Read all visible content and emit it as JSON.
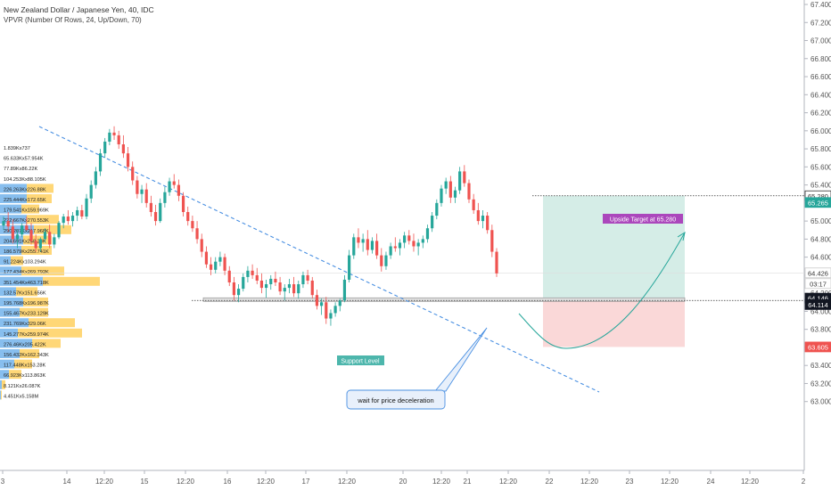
{
  "header": {
    "title": "New Zealand Dollar / Japanese Yen, 40, IDC",
    "indicator": "VPVR (Number Of Rows, 24, Up/Down, 70)"
  },
  "chart_data": {
    "type": "candlestick",
    "y_ticks": [
      "63.000",
      "63.200",
      "63.400",
      "63.600",
      "63.800",
      "64.000",
      "64.200",
      "64.400",
      "64.600",
      "64.800",
      "65.000",
      "65.200",
      "65.400",
      "65.600",
      "65.800",
      "66.000",
      "66.200",
      "66.400",
      "66.600",
      "66.800",
      "67.000",
      "67.200",
      "67.400"
    ],
    "x_ticks": [
      "3",
      "14",
      "12:20",
      "15",
      "12:20",
      "16",
      "12:20",
      "17",
      "12:20",
      "20",
      "12:20",
      "21",
      "12:20",
      "22",
      "12:20",
      "23",
      "12:20",
      "24",
      "12:20",
      "2"
    ],
    "price_badges": [
      {
        "value": "65.280",
        "bg": "#ffffff",
        "fg": "#333333",
        "border": "#333333"
      },
      {
        "value": "65.265",
        "bg": "#26a69a",
        "fg": "#ffffff"
      },
      {
        "value": "64.426",
        "bg": "#ffffff",
        "fg": "#333333",
        "border": "#cccccc"
      },
      {
        "value": "03:17",
        "bg": "#ffffff",
        "fg": "#333333",
        "border": "#cccccc"
      },
      {
        "value": "64.146",
        "bg": "#131722",
        "fg": "#ffffff"
      },
      {
        "value": "64.114",
        "bg": "#131722",
        "fg": "#ffffff"
      },
      {
        "value": "63.605",
        "bg": "#ef5350",
        "fg": "#ffffff"
      }
    ],
    "vp_labels": [
      "1.839Kx737",
      "65.633Kx57.954K",
      "77.89Kx86.22K",
      "104.253Kx88.105K",
      "226.263Kx226.88K",
      "225.444Kx172.65K",
      "179.541Kx159.969K",
      "222.667Kx270.553K",
      "290.207Kx217.968K",
      "204.691Kx248.23K",
      "186.579Kx255.741K",
      "91.224Kx103.294K",
      "177.434Kx269.792K",
      "351.454Kx463.718K",
      "132.57Kx151.656K",
      "195.768Kx196.987K",
      "155.467Kx233.129K",
      "231.769Kx329.06K",
      "145.277Kx259.974K",
      "276.46Kx205.422K",
      "156.432Kx162.343K",
      "117.448Kx153.28K",
      "66.923Kx113.863K",
      "8.121Kx26.087K",
      "4.451Kx5.158M"
    ],
    "vp_rows": [
      {
        "up": 0,
        "down": 0
      },
      {
        "up": 0,
        "down": 0
      },
      {
        "up": 0,
        "down": 0
      },
      {
        "up": 0,
        "down": 0
      },
      {
        "up": 30,
        "down": 30
      },
      {
        "up": 30,
        "down": 28
      },
      {
        "up": 24,
        "down": 20
      },
      {
        "up": 30,
        "down": 36
      },
      {
        "up": 38,
        "down": 42
      },
      {
        "up": 26,
        "down": 32
      },
      {
        "up": 24,
        "down": 34
      },
      {
        "up": 12,
        "down": 14
      },
      {
        "up": 24,
        "down": 48
      },
      {
        "up": 48,
        "down": 64
      },
      {
        "up": 18,
        "down": 24
      },
      {
        "up": 26,
        "down": 28
      },
      {
        "up": 22,
        "down": 32
      },
      {
        "up": 32,
        "down": 52
      },
      {
        "up": 20,
        "down": 72
      },
      {
        "up": 36,
        "down": 32
      },
      {
        "up": 22,
        "down": 22
      },
      {
        "up": 16,
        "down": 20
      },
      {
        "up": 10,
        "down": 14
      },
      {
        "up": 2,
        "down": 4
      },
      {
        "up": 1,
        "down": 1
      }
    ],
    "ohlc": [
      [
        64.95,
        65.05,
        64.9,
        65.0
      ],
      [
        65.0,
        65.1,
        64.88,
        64.94
      ],
      [
        64.94,
        65.02,
        64.75,
        64.8
      ],
      [
        64.8,
        64.9,
        64.7,
        64.85
      ],
      [
        64.85,
        64.98,
        64.82,
        64.95
      ],
      [
        64.95,
        65.05,
        64.9,
        64.9
      ],
      [
        64.9,
        64.98,
        64.74,
        64.78
      ],
      [
        64.78,
        64.85,
        64.66,
        64.7
      ],
      [
        64.7,
        64.82,
        64.66,
        64.8
      ],
      [
        64.8,
        64.92,
        64.76,
        64.88
      ],
      [
        64.88,
        64.96,
        64.7,
        64.74
      ],
      [
        64.74,
        64.86,
        64.7,
        64.82
      ],
      [
        64.82,
        65.0,
        64.8,
        64.98
      ],
      [
        64.98,
        65.08,
        64.92,
        65.05
      ],
      [
        65.05,
        65.12,
        64.96,
        65.0
      ],
      [
        65.0,
        65.1,
        64.94,
        65.06
      ],
      [
        65.06,
        65.16,
        65.0,
        65.12
      ],
      [
        65.12,
        65.18,
        65.02,
        65.05
      ],
      [
        65.05,
        65.3,
        65.02,
        65.25
      ],
      [
        65.25,
        65.45,
        65.2,
        65.4
      ],
      [
        65.4,
        65.6,
        65.36,
        65.55
      ],
      [
        65.55,
        65.8,
        65.5,
        65.75
      ],
      [
        65.75,
        65.92,
        65.7,
        65.88
      ],
      [
        65.88,
        66.02,
        65.84,
        65.98
      ],
      [
        65.98,
        66.05,
        65.9,
        65.95
      ],
      [
        65.95,
        66.0,
        65.8,
        65.85
      ],
      [
        65.85,
        65.95,
        65.7,
        65.75
      ],
      [
        65.75,
        65.82,
        65.55,
        65.6
      ],
      [
        65.6,
        65.66,
        65.4,
        65.45
      ],
      [
        65.45,
        65.5,
        65.25,
        65.3
      ],
      [
        65.3,
        65.4,
        65.2,
        65.35
      ],
      [
        65.35,
        65.42,
        65.15,
        65.2
      ],
      [
        65.2,
        65.28,
        65.05,
        65.1
      ],
      [
        65.1,
        65.18,
        64.95,
        65.0
      ],
      [
        65.0,
        65.25,
        64.98,
        65.2
      ],
      [
        65.2,
        65.38,
        65.15,
        65.32
      ],
      [
        65.32,
        65.48,
        65.28,
        65.44
      ],
      [
        65.44,
        65.52,
        65.36,
        65.4
      ],
      [
        65.4,
        65.46,
        65.22,
        65.28
      ],
      [
        65.28,
        65.32,
        65.05,
        65.1
      ],
      [
        65.1,
        65.16,
        64.95,
        65.0
      ],
      [
        65.0,
        65.06,
        64.88,
        64.92
      ],
      [
        64.92,
        65.0,
        64.75,
        64.8
      ],
      [
        64.8,
        64.86,
        64.6,
        64.66
      ],
      [
        64.66,
        64.72,
        64.48,
        64.52
      ],
      [
        64.52,
        64.6,
        64.4,
        64.46
      ],
      [
        64.46,
        64.6,
        64.42,
        64.55
      ],
      [
        64.55,
        64.66,
        64.5,
        64.6
      ],
      [
        64.6,
        64.64,
        64.4,
        64.45
      ],
      [
        64.45,
        64.5,
        64.28,
        64.32
      ],
      [
        64.32,
        64.38,
        64.12,
        64.18
      ],
      [
        64.18,
        64.3,
        64.1,
        64.25
      ],
      [
        64.25,
        64.42,
        64.22,
        64.38
      ],
      [
        64.38,
        64.5,
        64.32,
        64.45
      ],
      [
        64.45,
        64.52,
        64.36,
        64.4
      ],
      [
        64.4,
        64.48,
        64.3,
        64.34
      ],
      [
        64.34,
        64.42,
        64.2,
        64.26
      ],
      [
        64.26,
        64.35,
        64.15,
        64.3
      ],
      [
        64.3,
        64.4,
        64.24,
        64.36
      ],
      [
        64.36,
        64.44,
        64.28,
        64.32
      ],
      [
        64.32,
        64.38,
        64.18,
        64.22
      ],
      [
        64.22,
        64.3,
        64.12,
        64.26
      ],
      [
        64.26,
        64.36,
        64.2,
        64.3
      ],
      [
        64.3,
        64.38,
        64.16,
        64.2
      ],
      [
        64.2,
        64.34,
        64.14,
        64.3
      ],
      [
        64.3,
        64.44,
        64.26,
        64.4
      ],
      [
        64.4,
        64.46,
        64.3,
        64.34
      ],
      [
        64.34,
        64.38,
        64.14,
        64.18
      ],
      [
        64.18,
        64.24,
        64.02,
        64.06
      ],
      [
        64.06,
        64.14,
        63.96,
        64.1
      ],
      [
        64.1,
        64.16,
        63.86,
        63.92
      ],
      [
        63.92,
        64.02,
        63.84,
        63.98
      ],
      [
        63.98,
        64.1,
        63.94,
        64.06
      ],
      [
        64.06,
        64.14,
        64.0,
        64.12
      ],
      [
        64.12,
        64.4,
        64.1,
        64.35
      ],
      [
        64.35,
        64.68,
        64.32,
        64.62
      ],
      [
        64.62,
        64.86,
        64.58,
        64.82
      ],
      [
        64.82,
        64.92,
        64.7,
        64.76
      ],
      [
        64.76,
        64.86,
        64.66,
        64.8
      ],
      [
        64.8,
        64.9,
        64.62,
        64.68
      ],
      [
        64.68,
        64.82,
        64.64,
        64.78
      ],
      [
        64.78,
        64.86,
        64.58,
        64.62
      ],
      [
        64.62,
        64.7,
        64.44,
        64.5
      ],
      [
        64.5,
        64.66,
        64.46,
        64.62
      ],
      [
        64.62,
        64.76,
        64.58,
        64.72
      ],
      [
        64.72,
        64.82,
        64.66,
        64.7
      ],
      [
        64.7,
        64.8,
        64.62,
        64.76
      ],
      [
        64.76,
        64.88,
        64.7,
        64.84
      ],
      [
        64.84,
        64.9,
        64.74,
        64.78
      ],
      [
        64.78,
        64.86,
        64.66,
        64.72
      ],
      [
        64.72,
        64.8,
        64.62,
        64.76
      ],
      [
        64.76,
        64.84,
        64.7,
        64.8
      ],
      [
        64.8,
        64.96,
        64.76,
        64.92
      ],
      [
        64.92,
        65.1,
        64.88,
        65.06
      ],
      [
        65.06,
        65.24,
        65.02,
        65.2
      ],
      [
        65.2,
        65.4,
        65.16,
        65.36
      ],
      [
        65.36,
        65.48,
        65.3,
        65.44
      ],
      [
        65.44,
        65.5,
        65.2,
        65.26
      ],
      [
        65.26,
        65.38,
        65.2,
        65.34
      ],
      [
        65.34,
        65.6,
        65.3,
        65.55
      ],
      [
        65.55,
        65.62,
        65.38,
        65.42
      ],
      [
        65.42,
        65.46,
        65.2,
        65.24
      ],
      [
        65.24,
        65.3,
        65.08,
        65.12
      ],
      [
        65.12,
        65.2,
        64.96,
        65.0
      ],
      [
        65.0,
        65.12,
        64.92,
        65.06
      ],
      [
        65.06,
        65.1,
        64.86,
        64.9
      ],
      [
        64.9,
        64.96,
        64.6,
        64.66
      ],
      [
        64.66,
        64.7,
        64.38,
        64.42
      ]
    ],
    "annotations": {
      "support_label": "Support Level",
      "target_label": "Upside Target at 65.280",
      "callout_label": "wait for price deceleration"
    }
  }
}
